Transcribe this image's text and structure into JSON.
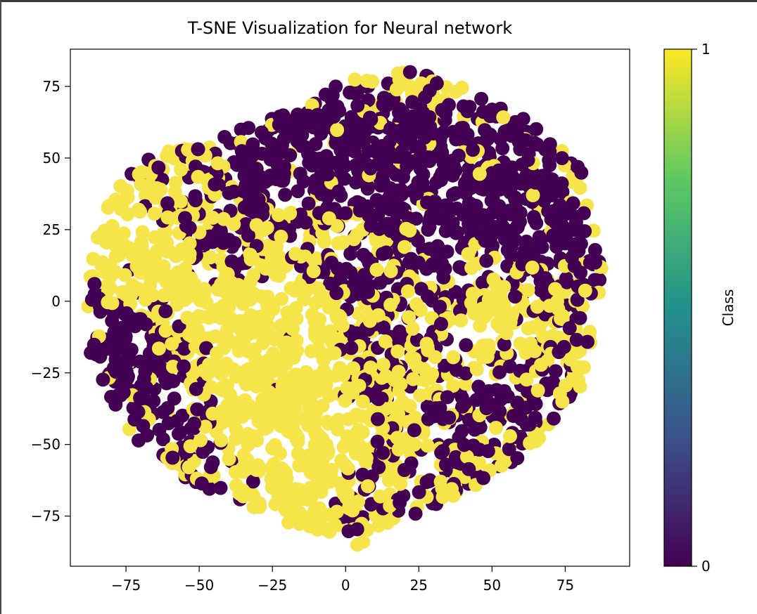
{
  "chart_data": {
    "type": "scatter",
    "title": "T-SNE Visualization for Neural network",
    "xlabel": "",
    "ylabel": "",
    "xlim": [
      -94,
      97
    ],
    "ylim": [
      -92.5,
      88
    ],
    "xticks": [
      -75,
      -50,
      -25,
      0,
      25,
      50,
      75
    ],
    "yticks": [
      -75,
      -50,
      -25,
      0,
      25,
      50,
      75
    ],
    "xtick_labels": [
      "−75",
      "−50",
      "−25",
      "0",
      "25",
      "50",
      "75"
    ],
    "ytick_labels": [
      "−75",
      "−50",
      "−25",
      "0",
      "25",
      "50",
      "75"
    ],
    "grid": false,
    "colormap": "viridis",
    "colors": {
      "class_0": "#440154",
      "class_1": "#f5e44a"
    },
    "series": [
      {
        "class": 1,
        "description": "yellow points"
      },
      {
        "class": 0,
        "description": "purple points"
      }
    ],
    "colorbar": {
      "label": "Class",
      "range": [
        0,
        1
      ],
      "ticks": [
        0,
        1
      ],
      "tick_labels": [
        "0",
        "1"
      ],
      "stops": [
        "#440154",
        "#3b528b",
        "#21918c",
        "#5ec962",
        "#fde725"
      ]
    },
    "cloud_boundary": [
      [
        -88,
        8
      ],
      [
        -82,
        35
      ],
      [
        -70,
        50
      ],
      [
        -52,
        55
      ],
      [
        -40,
        58
      ],
      [
        -25,
        65
      ],
      [
        -5,
        75
      ],
      [
        10,
        80
      ],
      [
        25,
        80
      ],
      [
        45,
        73
      ],
      [
        65,
        62
      ],
      [
        80,
        48
      ],
      [
        86,
        25
      ],
      [
        88,
        5
      ],
      [
        84,
        -15
      ],
      [
        80,
        -30
      ],
      [
        70,
        -45
      ],
      [
        55,
        -58
      ],
      [
        35,
        -70
      ],
      [
        15,
        -78
      ],
      [
        0,
        -82
      ],
      [
        -15,
        -80
      ],
      [
        -35,
        -72
      ],
      [
        -55,
        -62
      ],
      [
        -72,
        -48
      ],
      [
        -82,
        -30
      ],
      [
        -88,
        -12
      ]
    ]
  }
}
